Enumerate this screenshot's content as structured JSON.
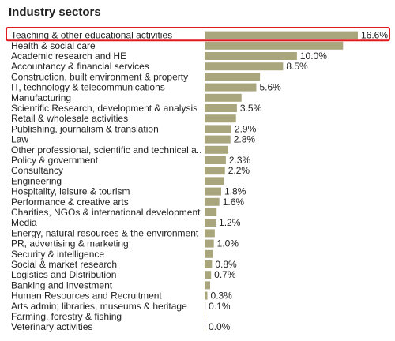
{
  "chart_data": {
    "type": "bar",
    "orientation": "horizontal",
    "title": "Industry sectors",
    "xlabel": "",
    "ylabel": "",
    "unit": "%",
    "xlim": [
      0,
      16.6
    ],
    "grid": false,
    "legend": "none",
    "highlighted_category": "Teaching & other educational activities",
    "bar_color": "#a9a67e",
    "highlight_color": "#e0191f",
    "categories": [
      "Teaching & other educational activities",
      "Health & social care",
      "Academic research and HE",
      "Accountancy & financial services",
      "Construction, built environment & property",
      "IT, technology & telecommunications",
      "Manufacturing",
      "Scientific Research, development & analysis",
      "Retail & wholesale activities",
      "Publishing, journalism & translation",
      "Law",
      "Other professional, scientific and technical a..",
      "Policy & government",
      "Consultancy",
      "Engineering",
      "Hospitality, leisure & tourism",
      "Performance & creative arts",
      "Charities, NGOs & international development",
      "Media",
      "Energy, natural resources & the environment",
      "PR, advertising & marketing",
      "Security & intelligence",
      "Social & market research",
      "Logistics and Distribution",
      "Banking and investment",
      "Human Resources and Recruitment",
      "Arts admin;  libraries, museums & heritage",
      "Farming, forestry & fishing",
      "Veterinary activities"
    ],
    "values": [
      16.6,
      15.0,
      10.0,
      8.5,
      6.0,
      5.6,
      4.0,
      3.5,
      3.4,
      2.9,
      2.8,
      2.5,
      2.3,
      2.2,
      2.1,
      1.8,
      1.6,
      1.3,
      1.2,
      1.1,
      1.0,
      0.9,
      0.8,
      0.7,
      0.6,
      0.3,
      0.1,
      0.05,
      0.0
    ],
    "labels": [
      "16.6%",
      "",
      "10.0%",
      "8.5%",
      "",
      "5.6%",
      "",
      "3.5%",
      "",
      "2.9%",
      "2.8%",
      "",
      "2.3%",
      "2.2%",
      "",
      "1.8%",
      "1.6%",
      "",
      "1.2%",
      "",
      "1.0%",
      "",
      "0.8%",
      "0.7%",
      "",
      "0.3%",
      "0.1%",
      "",
      "0.0%"
    ]
  }
}
